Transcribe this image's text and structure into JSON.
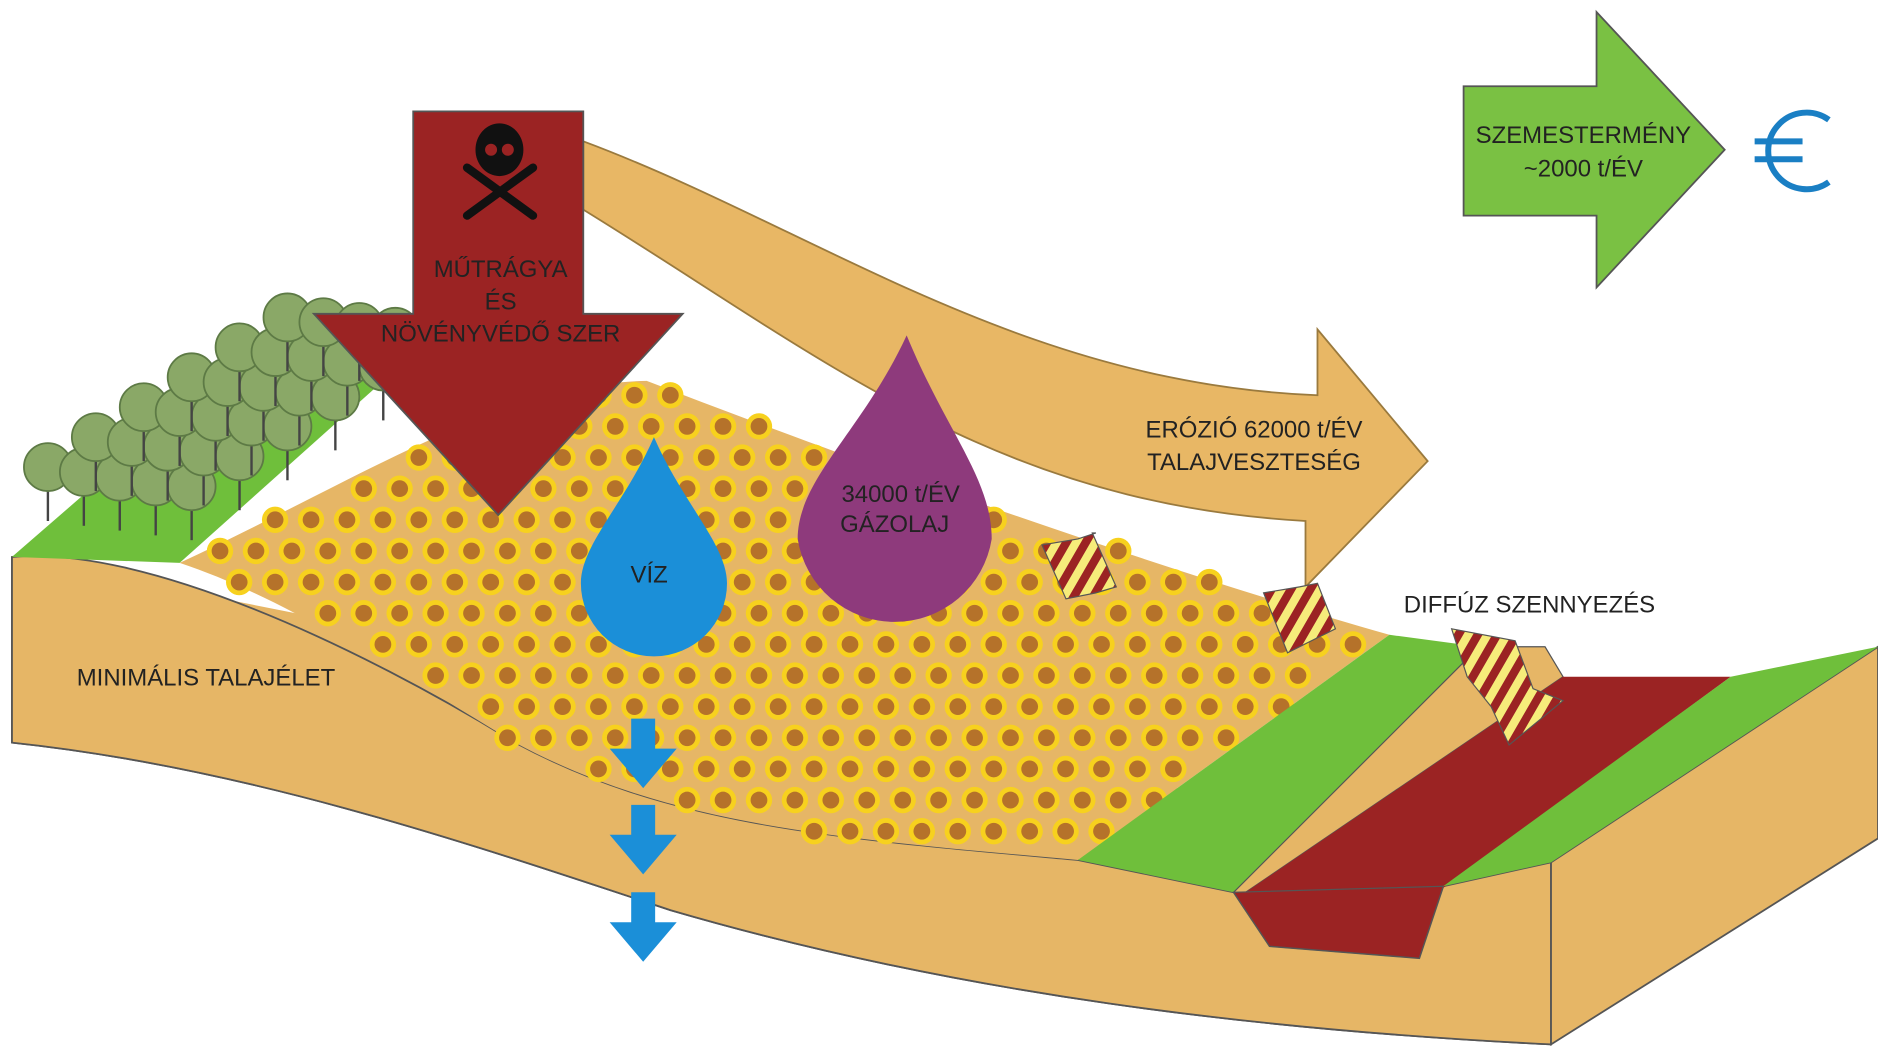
{
  "inputs": {
    "fertilizer": [
      "MŰTRÁGYA",
      "ÉS",
      "NÖVÉNYVÉDŐ SZER"
    ],
    "water": "VÍZ",
    "fuel": [
      "34000 t/ÉV",
      "GÁZOLAJ"
    ]
  },
  "outputs": {
    "erosion": [
      "ERÓZIÓ 62000 t/ÉV",
      "TALAJVESZTESÉG"
    ],
    "grain": [
      "SZEMESTERMÉNY",
      "~2000 t/ÉV"
    ],
    "pollution": "DIFFÚZ SZENNYEZÉS"
  },
  "soil": {
    "label": "MINIMÁLIS TALAJÉLET"
  }
}
